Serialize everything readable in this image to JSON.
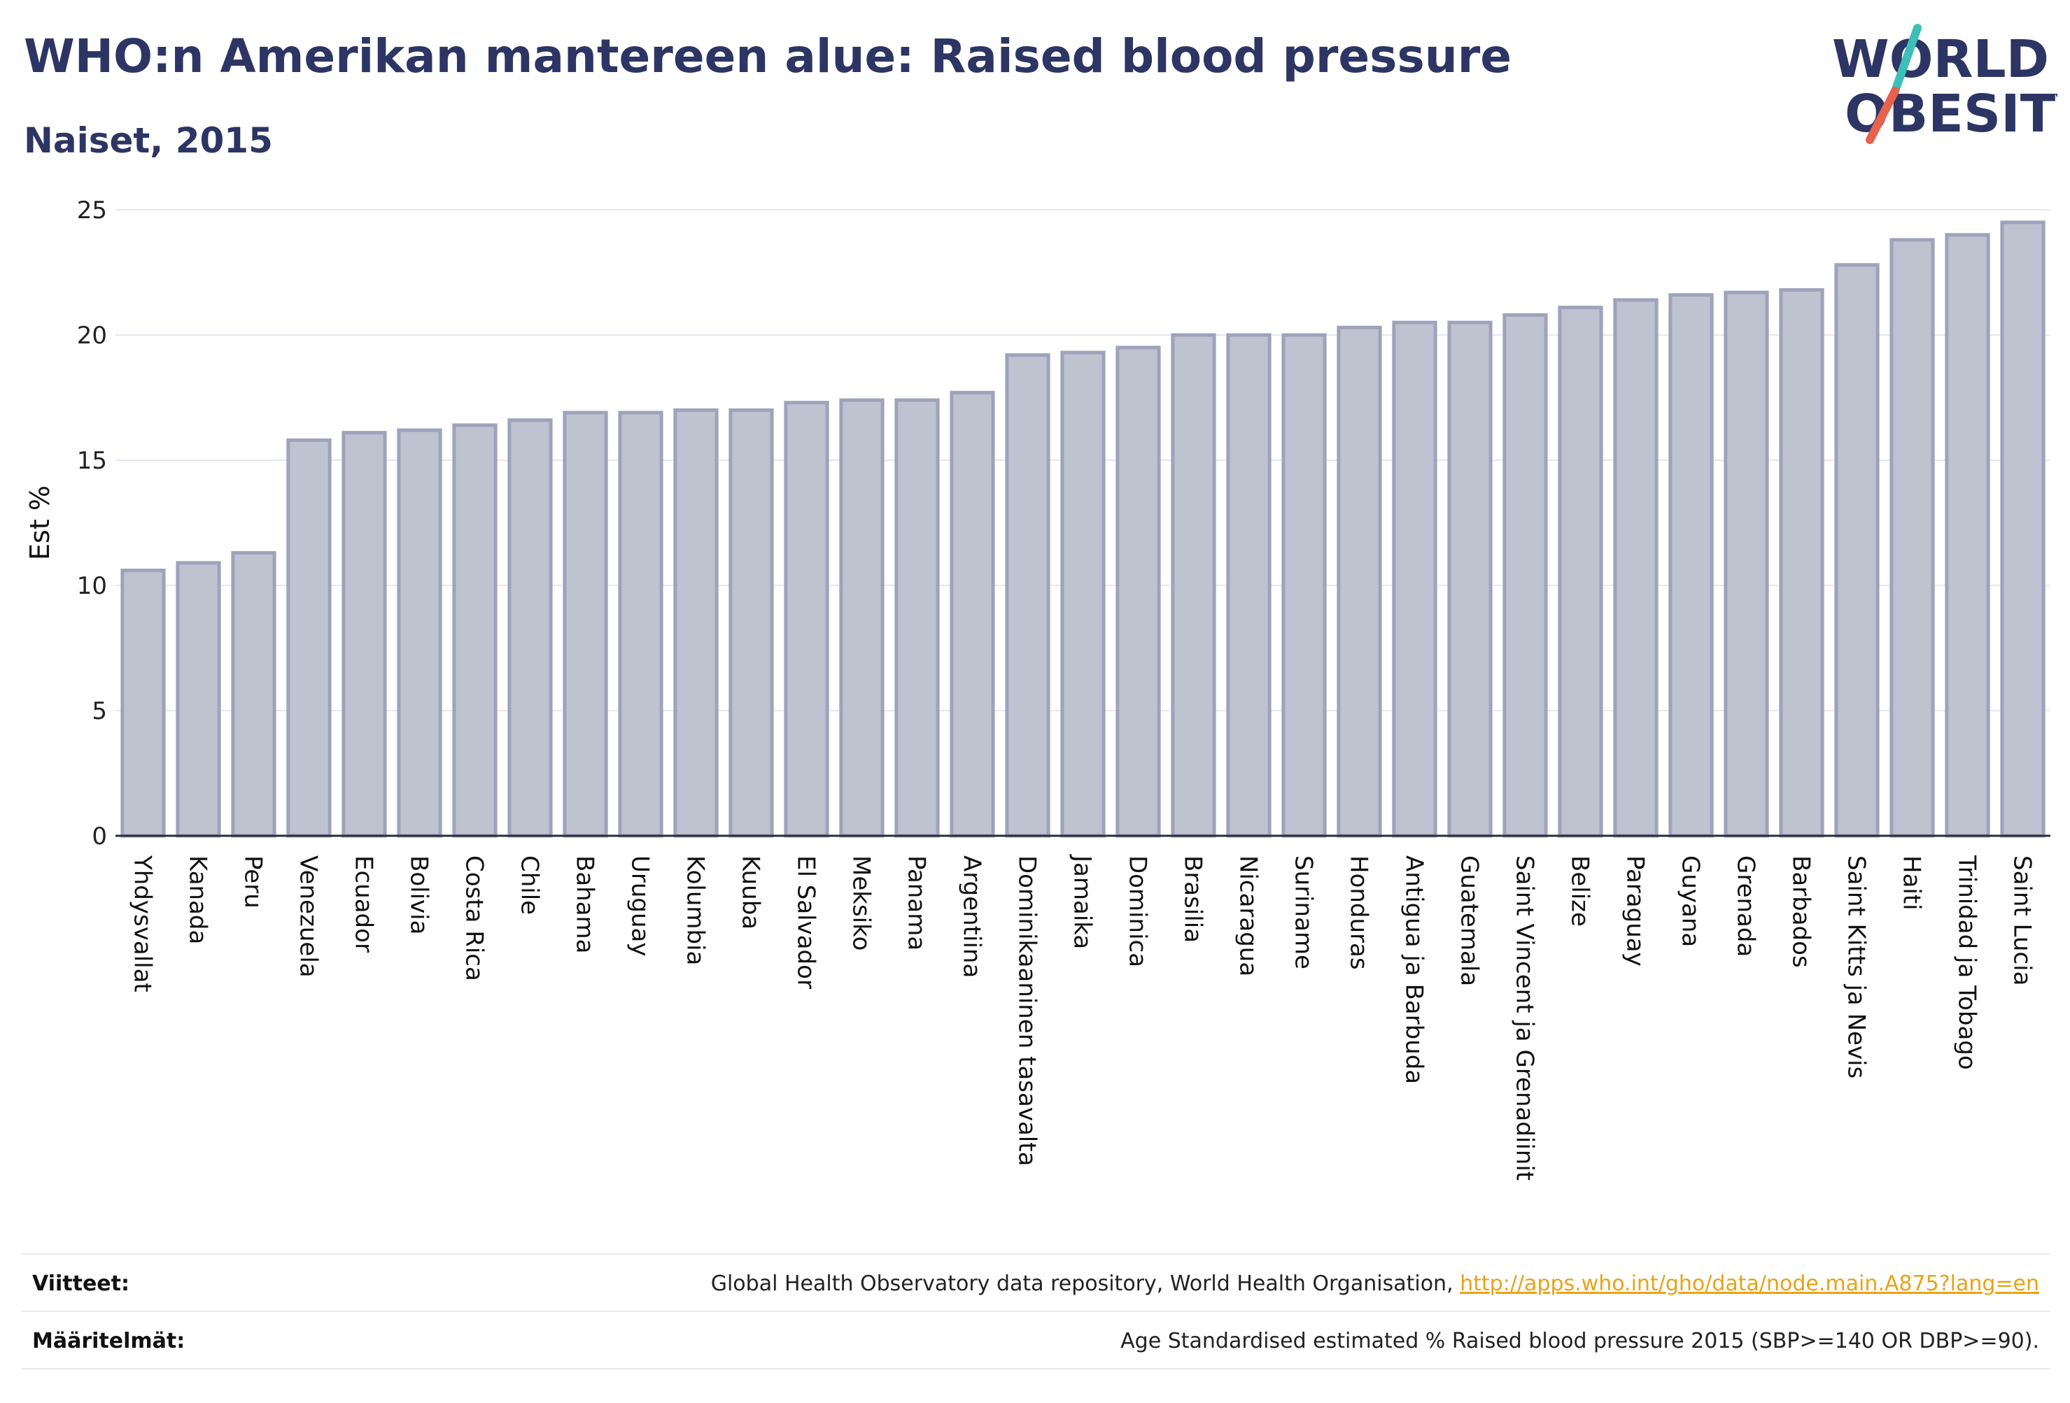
{
  "header": {
    "title": "WHO:n Amerikan mantereen alue: Raised blood pressure",
    "subtitle": "Naiset, 2015"
  },
  "logo": {
    "line1": "WORLD",
    "line2": "OBESITY",
    "colors": {
      "text": "#2c3563",
      "slash_top": "#3dbfb8",
      "slash_bottom": "#e8614d"
    }
  },
  "colors": {
    "bar_fill": "#bfc2cf",
    "bar_stroke": "#9ea3bb",
    "grid": "#e6e7ee",
    "axis": "#2d2d3a",
    "title": "#2c3563",
    "link": "#e8a317"
  },
  "chart_data": {
    "type": "bar",
    "title": "WHO:n Amerikan mantereen alue: Raised blood pressure",
    "subtitle": "Naiset, 2015",
    "xlabel": "",
    "ylabel": "Est %",
    "ylim": [
      0,
      25
    ],
    "yticks": [
      0,
      5,
      10,
      15,
      20,
      25
    ],
    "grid": true,
    "categories": [
      "Yhdysvallat",
      "Kanada",
      "Peru",
      "Venezuela",
      "Ecuador",
      "Bolivia",
      "Costa Rica",
      "Chile",
      "Bahama",
      "Uruguay",
      "Kolumbia",
      "Kuuba",
      "El Salvador",
      "Meksiko",
      "Panama",
      "Argentiina",
      "Dominikaaninen tasavalta",
      "Jamaika",
      "Dominica",
      "Brasilia",
      "Nicaragua",
      "Suriname",
      "Honduras",
      "Antigua ja Barbuda",
      "Guatemala",
      "Saint Vincent ja Grenadiinit",
      "Belize",
      "Paraguay",
      "Guyana",
      "Grenada",
      "Barbados",
      "Saint Kitts ja Nevis",
      "Haiti",
      "Trinidad ja Tobago",
      "Saint Lucia"
    ],
    "values": [
      10.6,
      10.9,
      11.3,
      15.8,
      16.1,
      16.2,
      16.4,
      16.6,
      16.9,
      16.9,
      17.0,
      17.0,
      17.3,
      17.4,
      17.4,
      17.7,
      19.2,
      19.3,
      19.5,
      20.0,
      20.0,
      20.0,
      20.3,
      20.5,
      20.5,
      20.8,
      21.1,
      21.4,
      21.6,
      21.7,
      21.8,
      22.8,
      23.8,
      24.0,
      24.5
    ]
  },
  "footer": {
    "references_label": "Viitteet:",
    "references_text": "Global Health Observatory data repository, World Health Organisation, ",
    "references_link": "http://apps.who.int/gho/data/node.main.A875?lang=en",
    "definitions_label": "Määritelmät:",
    "definitions_text": "Age Standardised estimated % Raised blood pressure 2015 (SBP>=140 OR DBP>=90)."
  }
}
